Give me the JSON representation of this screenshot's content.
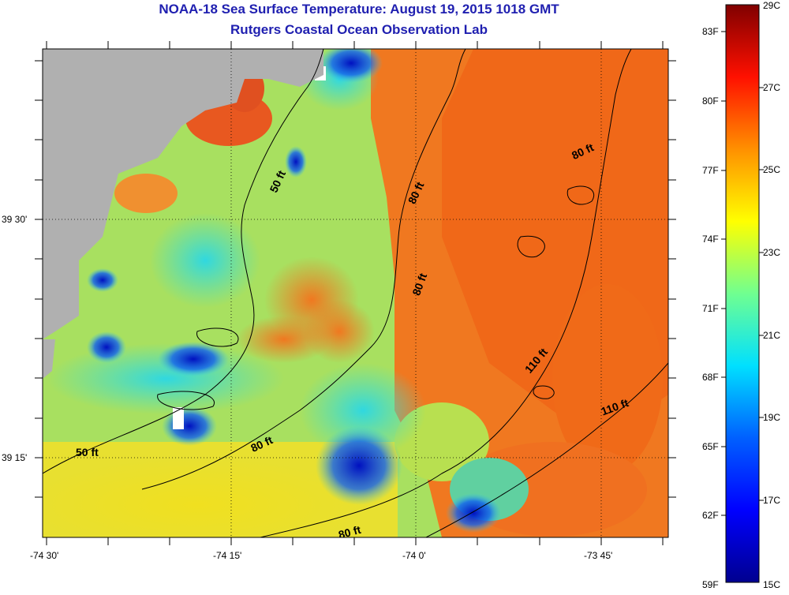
{
  "header": {
    "title": "NOAA-18 Sea Surface Temperature:  August 19, 2015 1018 GMT",
    "subtitle": "Rutgers Coastal Ocean Observation Lab"
  },
  "map": {
    "lon_labels": [
      "-74 30'",
      "-74 15'",
      "-74 0'",
      "-73 45'"
    ],
    "lat_labels": [
      "39 30'",
      "39 15'"
    ],
    "land_color": "#b0b0b0",
    "contour_labels": [
      "50 ft",
      "50 ft",
      "80 ft",
      "80 ft",
      "80 ft",
      "80 ft",
      "80 ft",
      "110 ft",
      "110 ft"
    ]
  },
  "colorbar": {
    "fahrenheit_labels": [
      "83F",
      "80F",
      "77F",
      "74F",
      "71F",
      "68F",
      "65F",
      "62F",
      "59F"
    ],
    "celsius_labels": [
      "29C",
      "27C",
      "25C",
      "23C",
      "21C",
      "19C",
      "17C",
      "15C"
    ],
    "range_c": [
      15,
      29
    ],
    "colors": [
      "#00008f",
      "#0000ff",
      "#0080ff",
      "#00ffff",
      "#80ff80",
      "#ffff00",
      "#ff8000",
      "#ff0000",
      "#800000"
    ]
  }
}
